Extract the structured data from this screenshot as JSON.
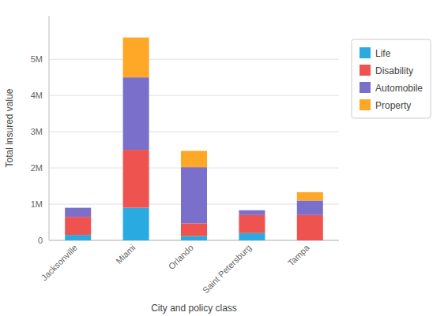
{
  "chart_data": {
    "type": "bar",
    "stacked": true,
    "categories": [
      "Jacksonville",
      "Miami",
      "Orlando",
      "Saint Petersburg",
      "Tampa"
    ],
    "series": [
      {
        "name": "Life",
        "color": "#29ABE2",
        "values": [
          150000,
          900000,
          120000,
          200000,
          0
        ]
      },
      {
        "name": "Disability",
        "color": "#EF5350",
        "values": [
          500000,
          1600000,
          350000,
          500000,
          700000
        ]
      },
      {
        "name": "Automobile",
        "color": "#7B6FCC",
        "values": [
          250000,
          2000000,
          1550000,
          130000,
          400000
        ]
      },
      {
        "name": "Property",
        "color": "#FFA726",
        "values": [
          0,
          1100000,
          450000,
          0,
          230000
        ]
      }
    ],
    "xlabel": "City and policy class",
    "ylabel": "Total insured value",
    "ylim": [
      0,
      6200000
    ],
    "yticks": [
      0,
      {
        "value": 1000000,
        "label": "1M"
      },
      {
        "value": 2000000,
        "label": "2M"
      },
      {
        "value": 3000000,
        "label": "3M"
      },
      {
        "value": 4000000,
        "label": "4M"
      },
      {
        "value": 5000000,
        "label": "5M"
      }
    ],
    "grid": true,
    "legend": "right"
  }
}
